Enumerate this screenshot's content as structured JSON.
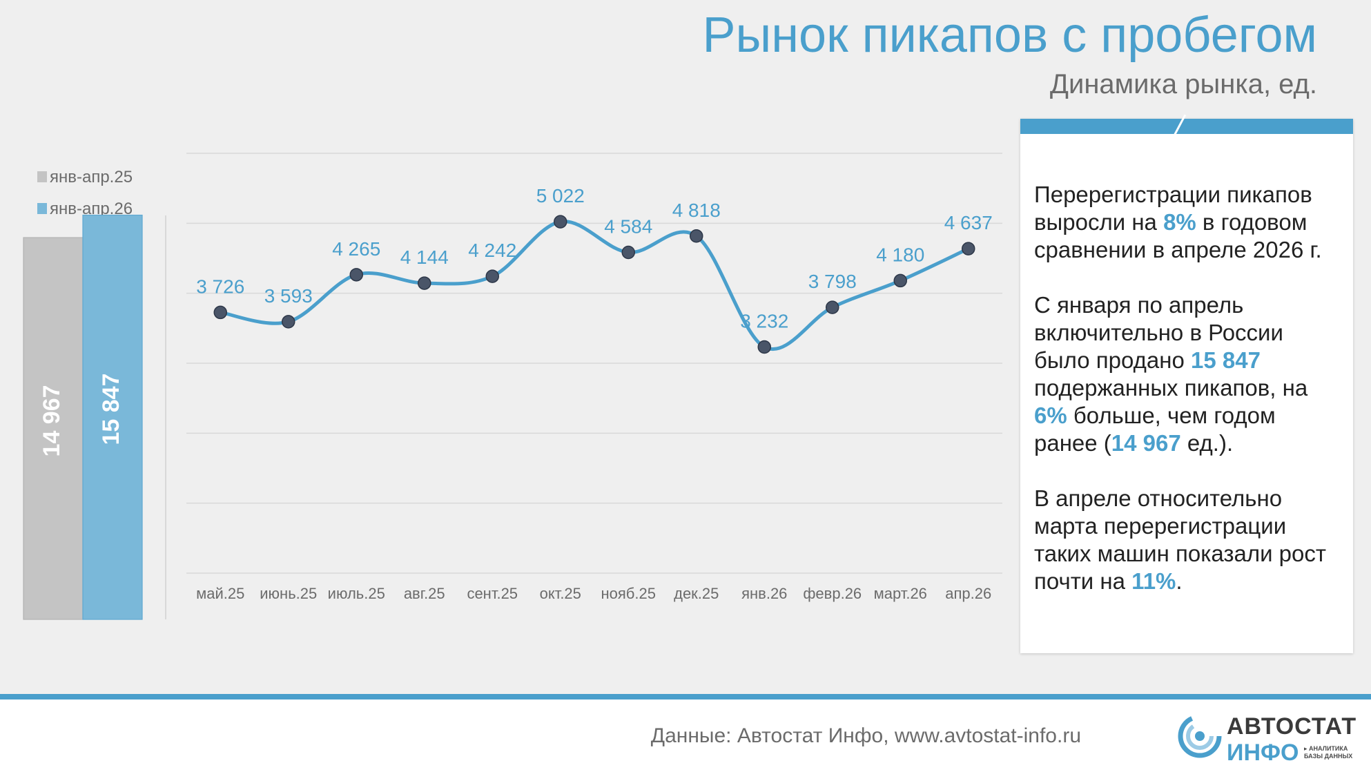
{
  "header": {
    "title": "Рынок пикапов с пробегом",
    "subtitle": "Динамика рынка, ед."
  },
  "chart_data": [
    {
      "type": "bar",
      "legend_position": "top-left",
      "categories": [
        "янв-апр.25",
        "янв-апр.26"
      ],
      "values": [
        14967,
        15847
      ],
      "value_labels": [
        "14 967",
        "15 847"
      ],
      "colors": [
        "#c4c4c4",
        "#7ab8d9"
      ],
      "ylim": [
        0,
        18000
      ]
    },
    {
      "type": "line",
      "categories": [
        "май.25",
        "июнь.25",
        "июль.25",
        "авг.25",
        "сент.25",
        "окт.25",
        "нояб.25",
        "дек.25",
        "янв.26",
        "февр.26",
        "март.26",
        "апр.26"
      ],
      "values": [
        3726,
        3593,
        4265,
        4144,
        4242,
        5022,
        4584,
        4818,
        3232,
        3798,
        4180,
        4637
      ],
      "value_labels": [
        "3 726",
        "3 593",
        "4 265",
        "4 144",
        "4 242",
        "5 022",
        "4 584",
        "4 818",
        "3 232",
        "3 798",
        "4 180",
        "4 637"
      ],
      "ylim": [
        0,
        6000
      ],
      "grid": true,
      "line_color": "#4a9fcc",
      "marker_color": "#4a5568"
    }
  ],
  "panel": {
    "p1_a": "Перерегистрации пикапов выросли на ",
    "p1_hl": "8%",
    "p1_b": " в годовом сравнении в апреле 2026 г.",
    "p2_a": "С января по апрель включительно в России было продано ",
    "p2_hl1": "15 847",
    "p2_b": " подержанных пикапов, на ",
    "p2_hl2": "6%",
    "p2_c": " больше, чем годом ранее (",
    "p2_hl3": "14 967",
    "p2_d": " ед.).",
    "p3_a": "В апреле относительно марта перерегистрации таких машин показали рост почти на ",
    "p3_hl": "11%",
    "p3_b": "."
  },
  "footer": {
    "source": "Данные: Автостат Инфо, www.avtostat-info.ru",
    "logo_top": "АВТОСТАТ",
    "logo_bottom": "ИНФО",
    "logo_tag1": "▸ АНАЛИТИКА",
    "logo_tag2": "БАЗЫ ДАННЫХ"
  }
}
